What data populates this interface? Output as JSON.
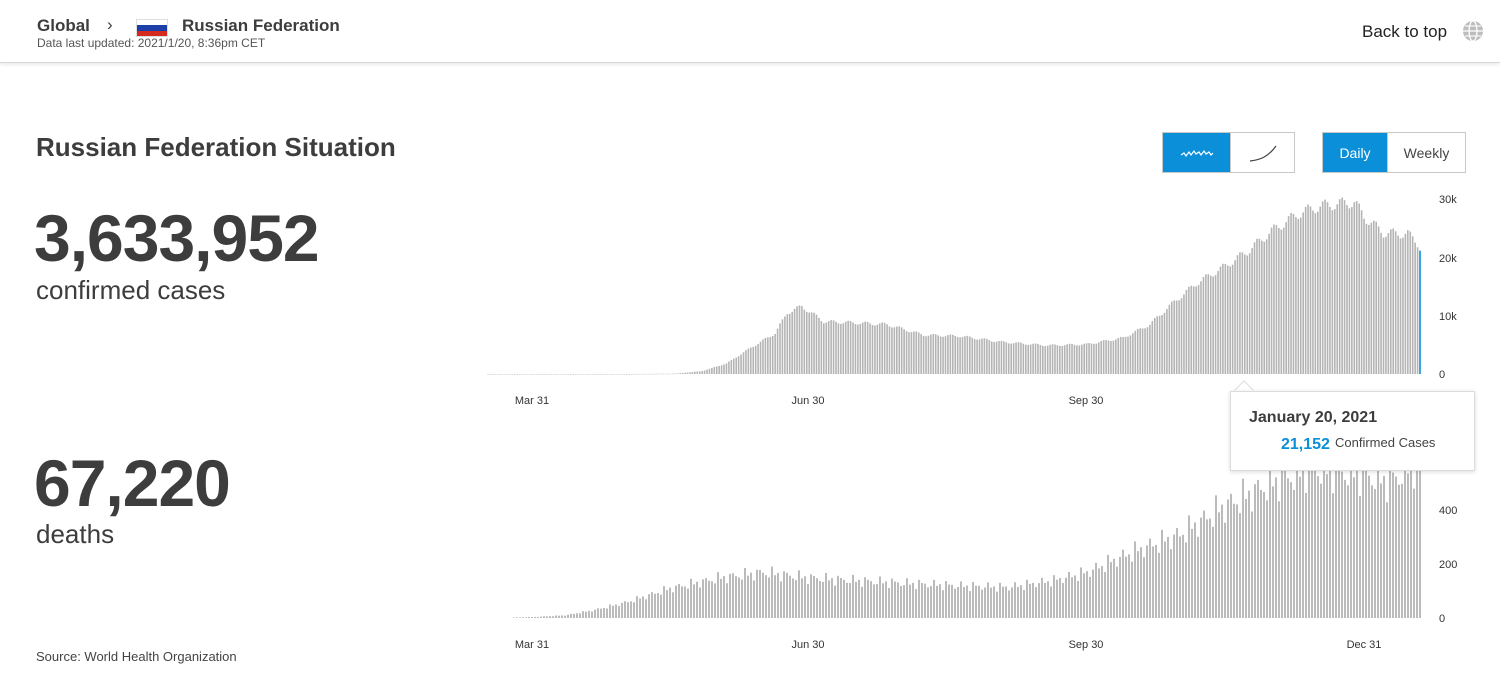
{
  "breadcrumb": {
    "global": "Global",
    "separator": "›",
    "country": "Russian Federation",
    "updated": "Data last updated: 2021/1/20, 8:36pm CET"
  },
  "header": {
    "back_to_top": "Back to top",
    "globe_icon": "globe-icon"
  },
  "situation": {
    "title": "Russian Federation Situation",
    "confirmed_value": "3,633,952",
    "confirmed_label": "confirmed cases",
    "deaths_value": "67,220",
    "deaths_label": "deaths",
    "source": "Source: World Health Organization"
  },
  "controls": {
    "chart_type_icons": [
      "bar-sparkline-icon",
      "curve-line-icon"
    ],
    "chart_type_active": 0,
    "period": [
      "Daily",
      "Weekly"
    ],
    "period_active": 0
  },
  "colors": {
    "accent": "#0a8fd8",
    "bar": "#b4b4b4",
    "text": "#3d3d3d"
  },
  "tooltip": {
    "date": "January 20, 2021",
    "value": "21,152",
    "label": "Confirmed Cases"
  },
  "chart_data": [
    {
      "type": "bar",
      "name": "confirmed cases (daily)",
      "x_ticks": [
        "Mar 31",
        "Jun 30",
        "Sep 30"
      ],
      "y_ticks": [
        "0",
        "10k",
        "20k",
        "30k"
      ],
      "ylim": [
        0,
        30000
      ],
      "x_start": "2020-01-03",
      "x_end": "2021-01-20",
      "highlight": {
        "date": "2021-01-20",
        "value": 21152
      },
      "keyframes": [
        [
          "2020-01-03",
          0
        ],
        [
          "2020-03-01",
          0
        ],
        [
          "2020-03-20",
          60
        ],
        [
          "2020-03-31",
          500
        ],
        [
          "2020-04-10",
          1800
        ],
        [
          "2020-04-20",
          4500
        ],
        [
          "2020-04-30",
          7000
        ],
        [
          "2020-05-05",
          10500
        ],
        [
          "2020-05-11",
          11600
        ],
        [
          "2020-05-20",
          9000
        ],
        [
          "2020-06-01",
          8800
        ],
        [
          "2020-06-15",
          8500
        ],
        [
          "2020-06-30",
          6700
        ],
        [
          "2020-07-15",
          6500
        ],
        [
          "2020-08-01",
          5500
        ],
        [
          "2020-08-20",
          4900
        ],
        [
          "2020-09-05",
          5100
        ],
        [
          "2020-09-20",
          6200
        ],
        [
          "2020-10-01",
          8500
        ],
        [
          "2020-10-10",
          12000
        ],
        [
          "2020-10-20",
          15500
        ],
        [
          "2020-11-01",
          18500
        ],
        [
          "2020-11-10",
          21000
        ],
        [
          "2020-11-20",
          24500
        ],
        [
          "2020-12-01",
          27500
        ],
        [
          "2020-12-10",
          28800
        ],
        [
          "2020-12-24",
          29500
        ],
        [
          "2020-12-28",
          27000
        ],
        [
          "2021-01-05",
          24200
        ],
        [
          "2021-01-15",
          24000
        ],
        [
          "2021-01-19",
          22500
        ],
        [
          "2021-01-20",
          21152
        ]
      ]
    },
    {
      "type": "bar",
      "name": "deaths (daily)",
      "x_ticks": [
        "Mar 31",
        "Jun 30",
        "Sep 30",
        "Dec 31"
      ],
      "y_ticks": [
        "0",
        "200",
        "400"
      ],
      "ylim": [
        0,
        650
      ],
      "x_start": "2020-03-24",
      "x_end": "2021-01-20",
      "keyframes": [
        [
          "2020-03-24",
          2
        ],
        [
          "2020-03-31",
          4
        ],
        [
          "2020-04-10",
          10
        ],
        [
          "2020-04-20",
          30
        ],
        [
          "2020-05-01",
          60
        ],
        [
          "2020-05-15",
          110
        ],
        [
          "2020-06-01",
          150
        ],
        [
          "2020-06-15",
          170
        ],
        [
          "2020-06-30",
          150
        ],
        [
          "2020-07-15",
          140
        ],
        [
          "2020-08-01",
          130
        ],
        [
          "2020-08-20",
          120
        ],
        [
          "2020-09-05",
          115
        ],
        [
          "2020-09-20",
          140
        ],
        [
          "2020-10-01",
          170
        ],
        [
          "2020-10-15",
          240
        ],
        [
          "2020-11-01",
          310
        ],
        [
          "2020-11-15",
          410
        ],
        [
          "2020-12-01",
          500
        ],
        [
          "2020-12-15",
          560
        ],
        [
          "2020-12-31",
          540
        ],
        [
          "2021-01-10",
          510
        ],
        [
          "2021-01-20",
          590
        ]
      ]
    }
  ]
}
